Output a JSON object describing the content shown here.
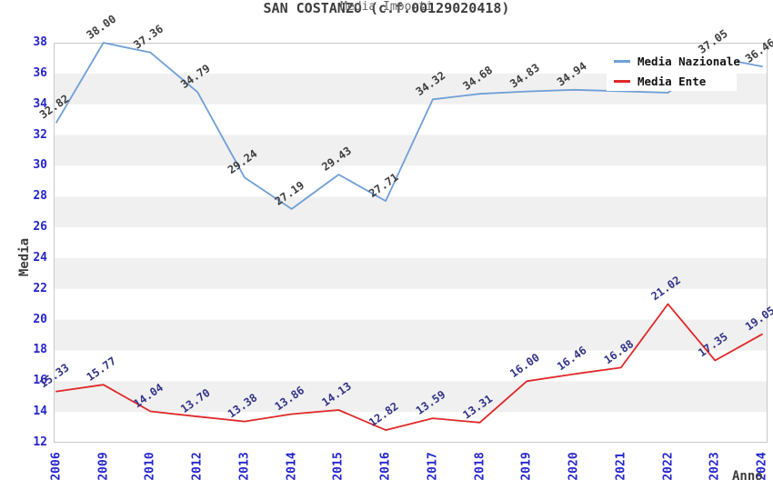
{
  "title": "SAN COSTANZO (c.f.00129020418)",
  "subtitle": "Media Importi",
  "y_axis_title": "Media",
  "x_axis_title": "Anno",
  "legend": {
    "position": "top-right",
    "items": [
      {
        "label": "Media Nazionale",
        "color": "#6f9fd6"
      },
      {
        "label": "Media Ente",
        "color": "#e02828"
      }
    ]
  },
  "chart_data": {
    "type": "line",
    "categories": [
      "2006",
      "2009",
      "2010",
      "2012",
      "2013",
      "2014",
      "2015",
      "2016",
      "2017",
      "2018",
      "2019",
      "2020",
      "2021",
      "2022",
      "2023",
      "2024"
    ],
    "series": [
      {
        "name": "Media Nazionale",
        "color": "#6f9fd6",
        "label_color": "#3d3d3d",
        "values": [
          32.82,
          38.0,
          37.36,
          34.79,
          29.24,
          27.19,
          29.43,
          27.71,
          34.32,
          34.68,
          34.83,
          34.94,
          34.85,
          34.75,
          37.05,
          36.46
        ],
        "labels": [
          "32.82",
          "38.00",
          "37.36",
          "34.79",
          "29.24",
          "27.19",
          "29.43",
          "27.71",
          "34.32",
          "34.68",
          "34.83",
          "34.94",
          null,
          null,
          "37.05",
          "36.46"
        ]
      },
      {
        "name": "Media Ente",
        "color": "#e02828",
        "label_color": "#333388",
        "values": [
          15.33,
          15.77,
          14.04,
          13.7,
          13.38,
          13.86,
          14.13,
          12.82,
          13.59,
          13.31,
          16.0,
          16.46,
          16.88,
          21.02,
          17.35,
          19.05
        ],
        "labels": [
          "15.33",
          "15.77",
          "14.04",
          "13.70",
          "13.38",
          "13.86",
          "14.13",
          "12.82",
          "13.59",
          "13.31",
          "16.00",
          "16.46",
          "16.88",
          "21.02",
          "17.35",
          "19.05"
        ]
      }
    ],
    "xlabel": "Anno",
    "ylabel": "Media",
    "ylim": [
      12,
      38
    ],
    "ytick_step": 2,
    "tick_color": "#2525cc",
    "band_colors": [
      "#ffffff",
      "#f0f0f0"
    ],
    "plot_border_color": "#c8c8c8",
    "grid": "alternating-bands",
    "legend_position": "top-right"
  }
}
